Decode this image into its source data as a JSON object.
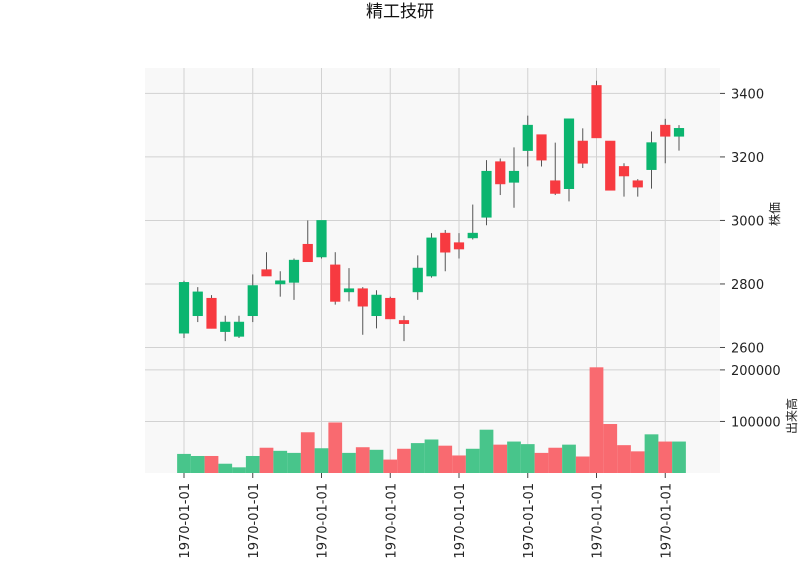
{
  "chart_data": {
    "type": "candlestick",
    "title": "精工技研",
    "grid": true,
    "colors": {
      "up": "#0bb56f",
      "down": "#f73a40",
      "up_volume": "#48c58b",
      "down_volume": "#f96a70",
      "wick": "#555555",
      "panel_bg": "#f8f8f8",
      "grid": "#d2d2d2"
    },
    "price_panel": {
      "ylabel": "株価",
      "ylim": [
        2570,
        3480
      ],
      "yticks": [
        2600,
        2800,
        3000,
        3200,
        3400
      ],
      "tick_labels": [
        "2600",
        "2800",
        "3000",
        "3200",
        "3400"
      ]
    },
    "volume_panel": {
      "ylabel": "出来高",
      "ylim": [
        0,
        225000
      ],
      "yticks": [
        100000,
        200000
      ],
      "tick_labels": [
        "100000",
        "200000"
      ]
    },
    "x_tick_index": [
      0,
      5,
      10,
      15,
      20,
      25,
      30,
      35
    ],
    "x_tick_labels": [
      "1970-01-01",
      "1970-01-01",
      "1970-01-01",
      "1970-01-01",
      "1970-01-01",
      "1970-01-01",
      "1970-01-01",
      "1970-01-01"
    ],
    "candles": [
      {
        "open": 2645,
        "high": 2810,
        "low": 2630,
        "close": 2805,
        "volume": 37000
      },
      {
        "open": 2700,
        "high": 2790,
        "low": 2680,
        "close": 2775,
        "volume": 33000
      },
      {
        "open": 2755,
        "high": 2765,
        "low": 2660,
        "close": 2660,
        "volume": 33000
      },
      {
        "open": 2650,
        "high": 2700,
        "low": 2620,
        "close": 2680,
        "volume": 18000
      },
      {
        "open": 2635,
        "high": 2700,
        "low": 2630,
        "close": 2680,
        "volume": 11000
      },
      {
        "open": 2700,
        "high": 2830,
        "low": 2680,
        "close": 2795,
        "volume": 33000
      },
      {
        "open": 2845,
        "high": 2900,
        "low": 2825,
        "close": 2825,
        "volume": 49000
      },
      {
        "open": 2800,
        "high": 2840,
        "low": 2760,
        "close": 2810,
        "volume": 43000
      },
      {
        "open": 2805,
        "high": 2880,
        "low": 2750,
        "close": 2875,
        "volume": 39000
      },
      {
        "open": 2925,
        "high": 3000,
        "low": 2870,
        "close": 2870,
        "volume": 79000
      },
      {
        "open": 2885,
        "high": 3000,
        "low": 2880,
        "close": 3000,
        "volume": 48000
      },
      {
        "open": 2860,
        "high": 2900,
        "low": 2735,
        "close": 2745,
        "volume": 98000
      },
      {
        "open": 2775,
        "high": 2850,
        "low": 2745,
        "close": 2785,
        "volume": 39000
      },
      {
        "open": 2785,
        "high": 2790,
        "low": 2640,
        "close": 2730,
        "volume": 50000
      },
      {
        "open": 2700,
        "high": 2780,
        "low": 2660,
        "close": 2765,
        "volume": 45000
      },
      {
        "open": 2755,
        "high": 2760,
        "low": 2690,
        "close": 2690,
        "volume": 26000
      },
      {
        "open": 2685,
        "high": 2700,
        "low": 2620,
        "close": 2675,
        "volume": 47000
      },
      {
        "open": 2775,
        "high": 2890,
        "low": 2750,
        "close": 2850,
        "volume": 58000
      },
      {
        "open": 2825,
        "high": 2960,
        "low": 2820,
        "close": 2945,
        "volume": 65000
      },
      {
        "open": 2960,
        "high": 2970,
        "low": 2840,
        "close": 2900,
        "volume": 53000
      },
      {
        "open": 2930,
        "high": 2960,
        "low": 2880,
        "close": 2910,
        "volume": 34000
      },
      {
        "open": 2945,
        "high": 3050,
        "low": 2940,
        "close": 2960,
        "volume": 47000
      },
      {
        "open": 3010,
        "high": 3190,
        "low": 2985,
        "close": 3155,
        "volume": 84000
      },
      {
        "open": 3185,
        "high": 3195,
        "low": 3080,
        "close": 3115,
        "volume": 55000
      },
      {
        "open": 3120,
        "high": 3230,
        "low": 3040,
        "close": 3155,
        "volume": 61000
      },
      {
        "open": 3220,
        "high": 3330,
        "low": 3170,
        "close": 3300,
        "volume": 56000
      },
      {
        "open": 3270,
        "high": 3270,
        "low": 3170,
        "close": 3190,
        "volume": 39000
      },
      {
        "open": 3125,
        "high": 3245,
        "low": 3080,
        "close": 3085,
        "volume": 49000
      },
      {
        "open": 3100,
        "high": 3320,
        "low": 3060,
        "close": 3320,
        "volume": 55000
      },
      {
        "open": 3250,
        "high": 3290,
        "low": 3165,
        "close": 3180,
        "volume": 32000
      },
      {
        "open": 3425,
        "high": 3440,
        "low": 3260,
        "close": 3260,
        "volume": 205000
      },
      {
        "open": 3250,
        "high": 3250,
        "low": 3095,
        "close": 3095,
        "volume": 95000
      },
      {
        "open": 3170,
        "high": 3180,
        "low": 3075,
        "close": 3140,
        "volume": 54000
      },
      {
        "open": 3125,
        "high": 3130,
        "low": 3075,
        "close": 3105,
        "volume": 42000
      },
      {
        "open": 3160,
        "high": 3280,
        "low": 3100,
        "close": 3245,
        "volume": 75000
      },
      {
        "open": 3300,
        "high": 3320,
        "low": 3180,
        "close": 3265,
        "volume": 61000
      },
      {
        "open": 3265,
        "high": 3300,
        "low": 3220,
        "close": 3290,
        "volume": 61000
      }
    ]
  }
}
